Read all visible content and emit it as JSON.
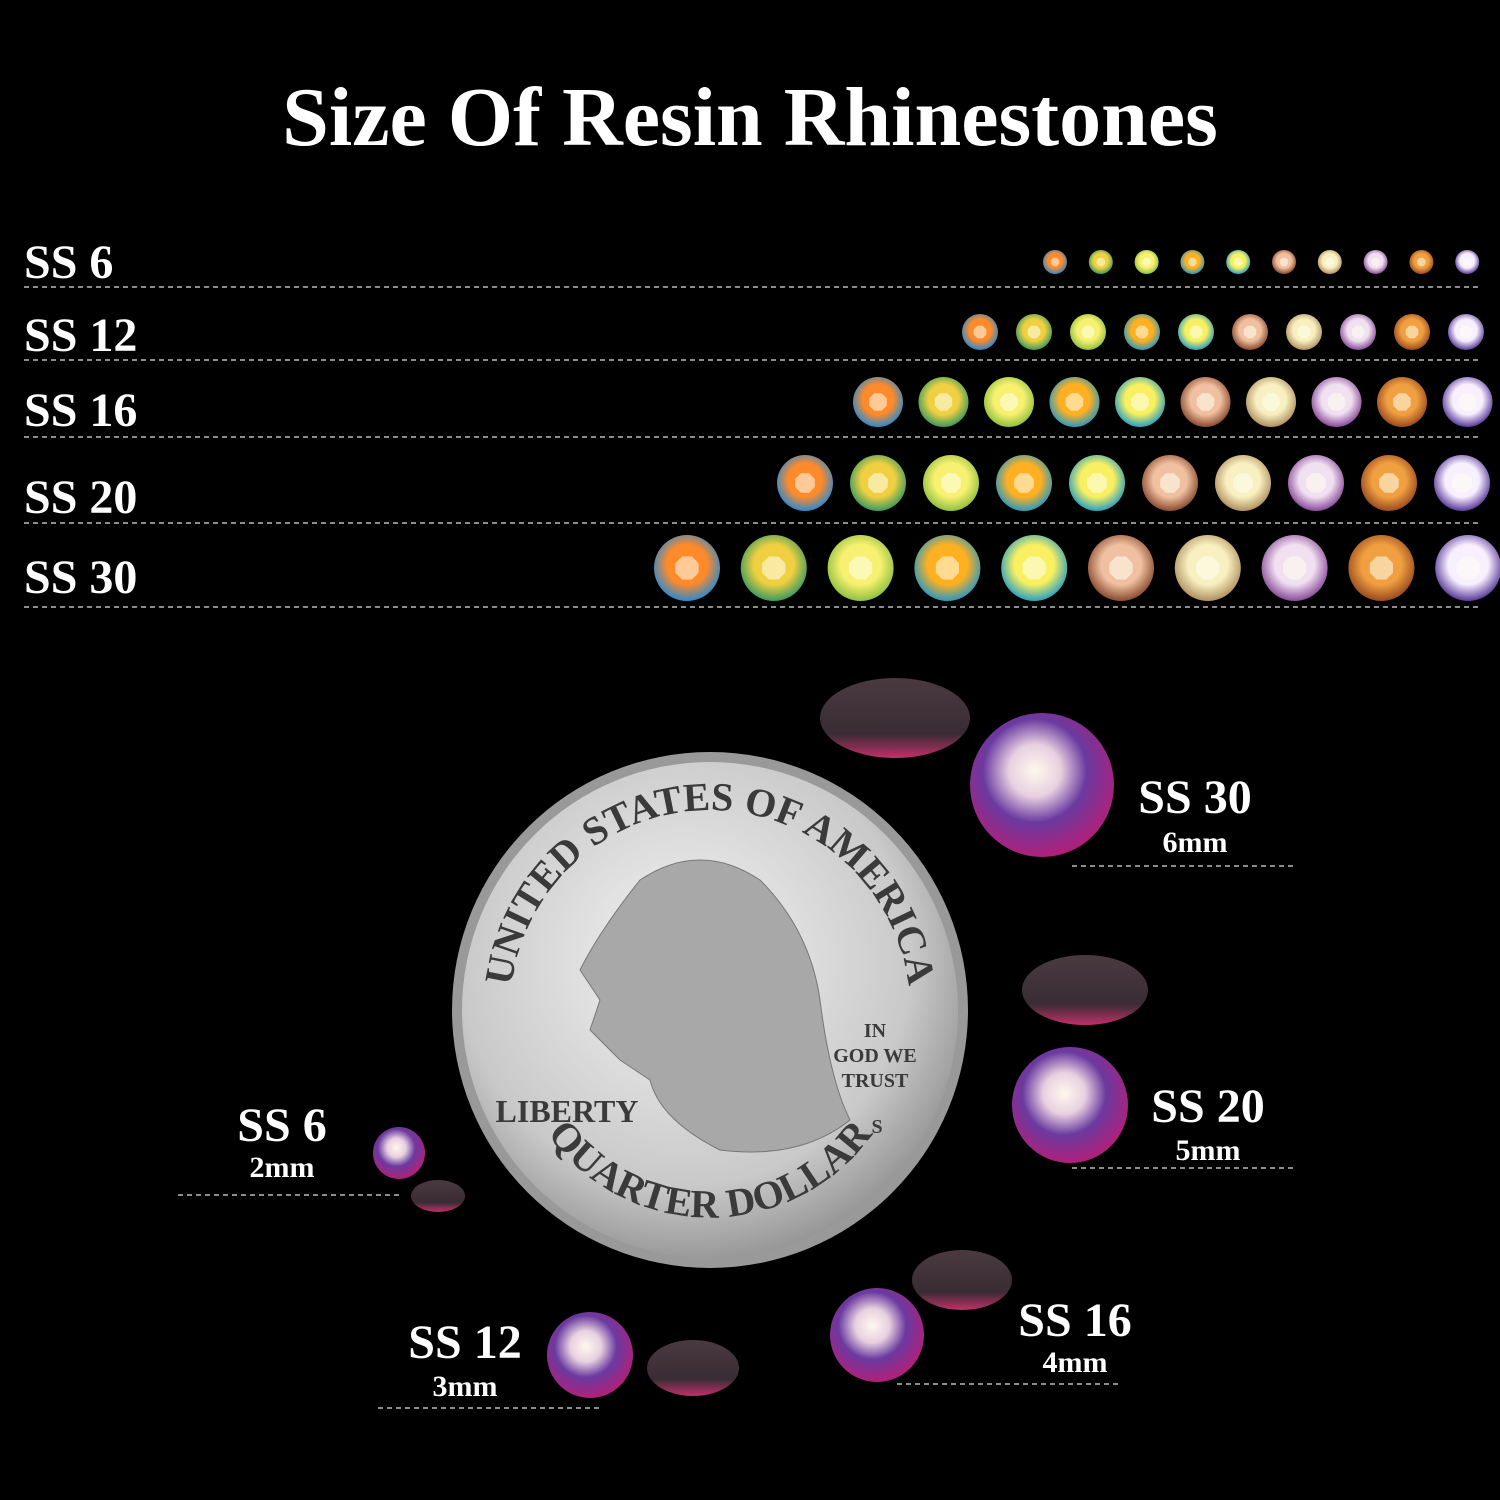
{
  "title": "Size Of Resin Rhinestones",
  "rows": [
    {
      "label": "SS 6"
    },
    {
      "label": "SS 12"
    },
    {
      "label": "SS 16"
    },
    {
      "label": "SS 20"
    },
    {
      "label": "SS 30"
    }
  ],
  "coin": {
    "top": "UNITED STATES OF AMERICA",
    "motto": [
      "IN",
      "GOD WE",
      "TRUST"
    ],
    "liberty": "LIBERTY",
    "bottom": "QUARTER DOLLAR",
    "mint": "S"
  },
  "callouts": [
    {
      "label": "SS 30",
      "size": "6mm"
    },
    {
      "label": "SS 20",
      "size": "5mm"
    },
    {
      "label": "SS 16",
      "size": "4mm"
    },
    {
      "label": "SS 12",
      "size": "3mm"
    },
    {
      "label": "SS 6",
      "size": "2mm"
    }
  ]
}
